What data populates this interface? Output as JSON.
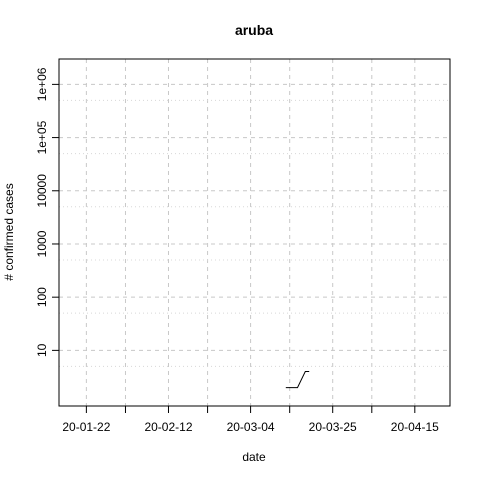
{
  "chart_data": {
    "type": "line",
    "title": "aruba",
    "xlabel": "date",
    "ylabel": "# confirmed cases",
    "y_scale": "log",
    "grid": true,
    "x_range": [
      "2020-01-15",
      "2020-04-24"
    ],
    "y_range": [
      0.9,
      3000000
    ],
    "x_ticks": [
      {
        "date": "2020-01-22",
        "label": "20-01-22"
      },
      {
        "date": "2020-02-12",
        "label": "20-02-12"
      },
      {
        "date": "2020-03-04",
        "label": "20-03-04"
      },
      {
        "date": "2020-03-25",
        "label": "20-03-25"
      },
      {
        "date": "2020-04-15",
        "label": "20-04-15"
      }
    ],
    "x_minor_ticks": [
      "2020-02-01",
      "2020-02-22",
      "2020-03-14",
      "2020-04-04",
      "2020-04-25"
    ],
    "y_ticks": [
      {
        "value": 10,
        "label": "10"
      },
      {
        "value": 100,
        "label": "100"
      },
      {
        "value": 1000,
        "label": "1000"
      },
      {
        "value": 10000,
        "label": "10000"
      },
      {
        "value": 100000,
        "label": "1e+05"
      },
      {
        "value": 1000000,
        "label": "1e+06"
      }
    ],
    "y_minor_grid": [
      5,
      50,
      500,
      5000,
      50000,
      500000
    ],
    "series": [
      {
        "points": [
          {
            "x": "2020-03-13",
            "y": 2
          },
          {
            "x": "2020-03-16",
            "y": 2
          },
          {
            "x": "2020-03-18",
            "y": 4
          },
          {
            "x": "2020-03-19",
            "y": 4
          }
        ]
      }
    ]
  }
}
